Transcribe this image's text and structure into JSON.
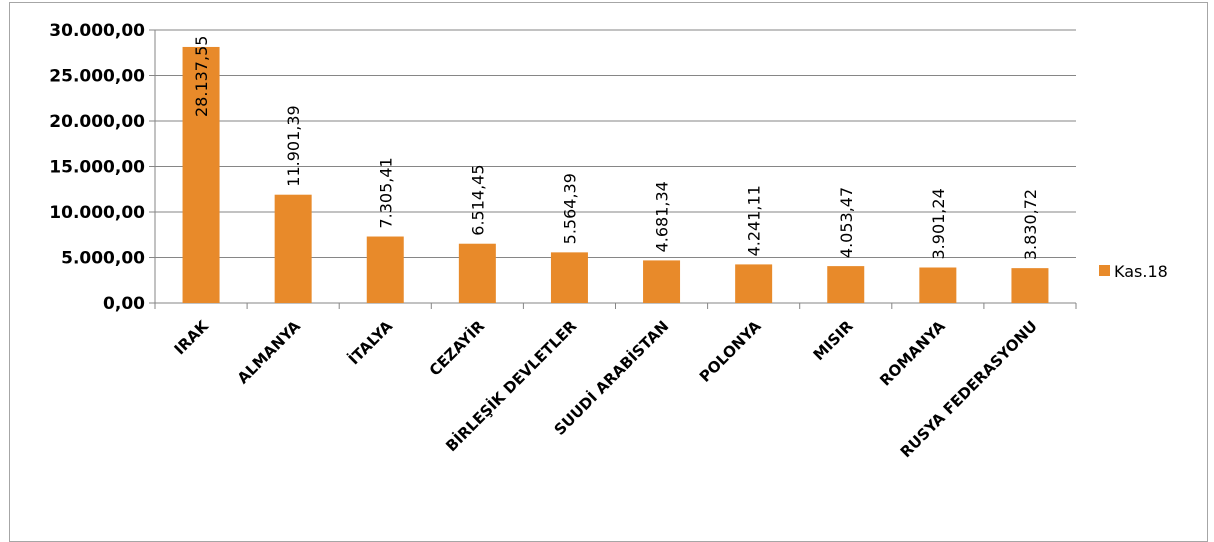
{
  "chart_data": {
    "type": "bar",
    "title": "",
    "xlabel": "",
    "ylabel": "",
    "categories": [
      "IRAK",
      "ALMANYA",
      "İTALYA",
      "CEZAYİR",
      "BİRLEŞİK DEVLETLER",
      "SUUDİ ARABİSTAN",
      "POLONYA",
      "MISIR",
      "ROMANYA",
      "RUSYA FEDERASYONU"
    ],
    "series": [
      {
        "name": "Kas.18",
        "color": "#e88a2a",
        "values": [
          28137.55,
          11901.39,
          7305.41,
          6514.45,
          5564.39,
          4681.34,
          4241.11,
          4053.47,
          3901.24,
          3830.72
        ],
        "labels": [
          "28.137,55",
          "11.901,39",
          "7.305,41",
          "6.514,45",
          "5.564,39",
          "4.681,34",
          "4.241,11",
          "4.053,47",
          "3.901,24",
          "3.830,72"
        ]
      }
    ],
    "ylim": [
      0,
      30000
    ],
    "yticks": [
      0,
      5000,
      10000,
      15000,
      20000,
      25000,
      30000
    ],
    "ytick_labels": [
      "0,00",
      "5.000,00",
      "10.000,00",
      "15.000,00",
      "20.000,00",
      "25.000,00",
      "30.000,00"
    ],
    "grid": true,
    "legend_position": "right"
  }
}
